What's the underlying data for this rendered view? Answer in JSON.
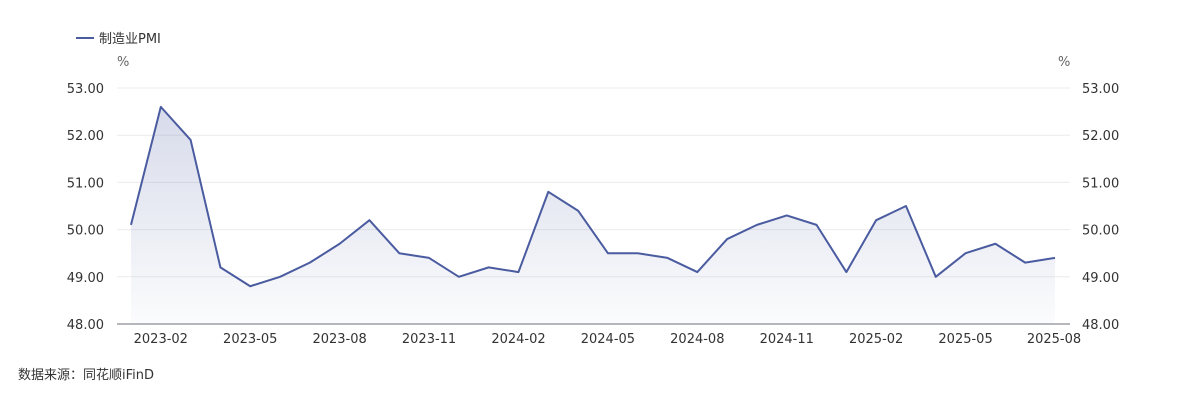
{
  "chart_data": {
    "type": "area",
    "series": [
      {
        "name": "制造业PMI",
        "x": [
          "2023-01",
          "2023-02",
          "2023-03",
          "2023-04",
          "2023-05",
          "2023-06",
          "2023-07",
          "2023-08",
          "2023-09",
          "2023-10",
          "2023-11",
          "2023-12",
          "2024-01",
          "2024-02",
          "2024-03",
          "2024-04",
          "2024-05",
          "2024-06",
          "2024-07",
          "2024-08",
          "2024-09",
          "2024-10",
          "2024-11",
          "2024-12",
          "2025-01",
          "2025-02",
          "2025-03",
          "2025-04",
          "2025-05",
          "2025-06",
          "2025-07",
          "2025-08"
        ],
        "values": [
          50.1,
          52.6,
          51.9,
          49.2,
          48.8,
          49.0,
          49.3,
          49.7,
          50.2,
          49.5,
          49.4,
          49.0,
          49.2,
          49.1,
          50.8,
          50.4,
          49.5,
          49.5,
          49.4,
          49.1,
          49.8,
          50.1,
          50.3,
          50.1,
          49.1,
          50.2,
          50.5,
          49.0,
          49.5,
          49.7,
          49.3,
          49.4
        ]
      }
    ],
    "x_tick_labels": [
      "2023-02",
      "2023-05",
      "2023-08",
      "2023-11",
      "2024-02",
      "2024-05",
      "2024-08",
      "2024-11",
      "2025-02",
      "2025-05",
      "2025-08"
    ],
    "y_tick_labels": [
      "48.00",
      "49.00",
      "50.00",
      "51.00",
      "52.00",
      "53.00"
    ],
    "ylim": [
      48,
      53
    ],
    "y_unit_left": "%",
    "y_unit_right": "%",
    "grid": true,
    "legend_position": "top-left",
    "line_color": "#4a5ba0"
  },
  "source": "数据来源：同花顺iFinD"
}
